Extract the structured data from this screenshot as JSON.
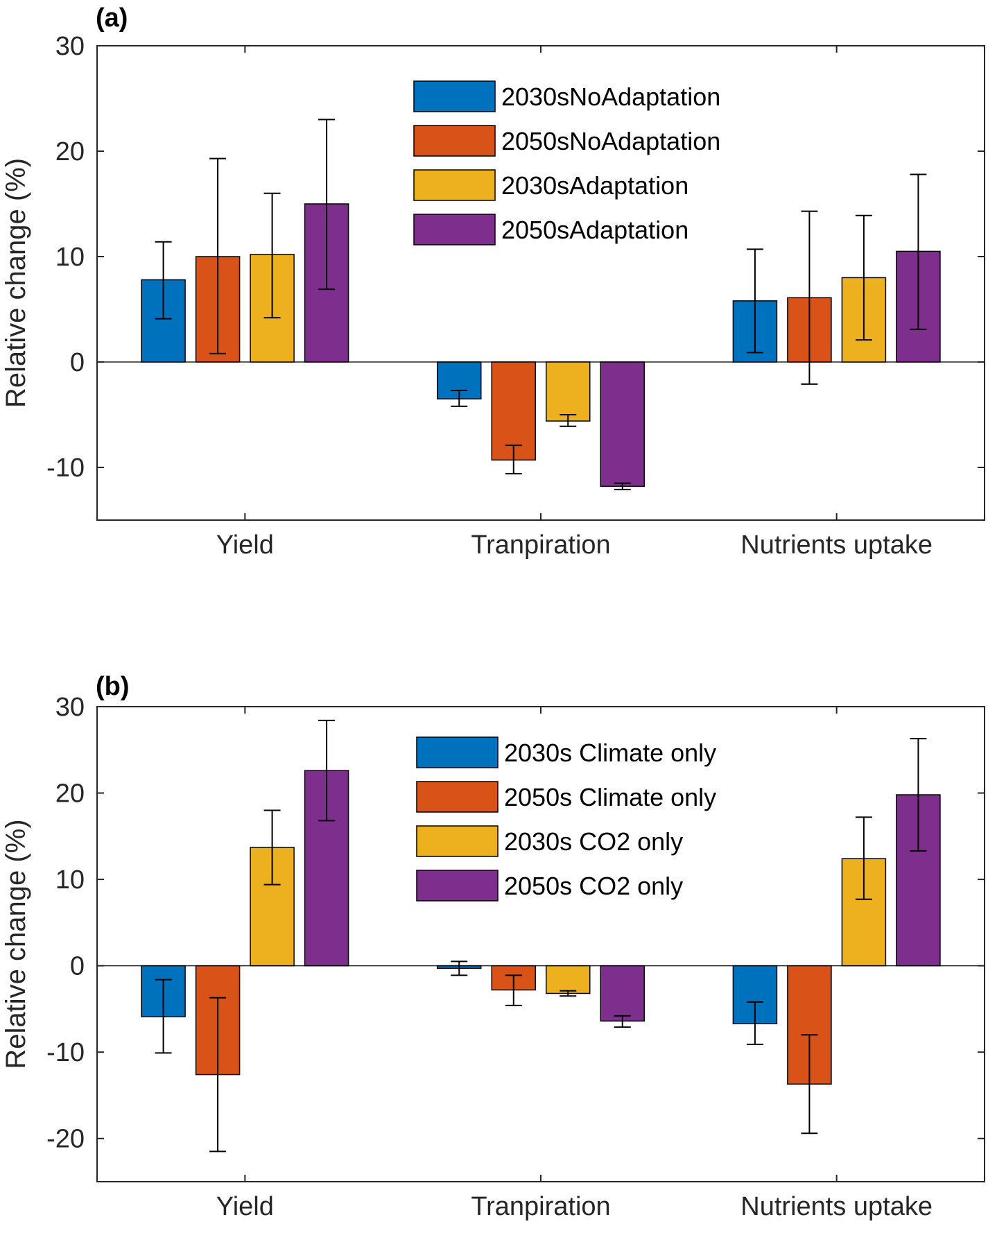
{
  "chart_data": [
    {
      "panel_label": "(a)",
      "type": "bar",
      "categories": [
        "Yield",
        "Tranpiration",
        "Nutrients uptake"
      ],
      "ylabel": "Relative change (%)",
      "ylim": [
        -15,
        30
      ],
      "yticks": [
        -10,
        0,
        10,
        20,
        30
      ],
      "legend_position": "top-center",
      "series": [
        {
          "name": "2030sNoAdaptation",
          "color": "#0072BD",
          "values": [
            7.8,
            -3.5,
            5.8
          ],
          "err_low": [
            4.1,
            -4.2,
            0.9
          ],
          "err_high": [
            11.4,
            -2.7,
            10.7
          ]
        },
        {
          "name": "2050sNoAdaptation",
          "color": "#D95319",
          "values": [
            10.0,
            -9.3,
            6.1
          ],
          "err_low": [
            0.8,
            -10.6,
            -2.1
          ],
          "err_high": [
            19.3,
            -7.9,
            14.3
          ]
        },
        {
          "name": "2030sAdaptation",
          "color": "#EDB120",
          "values": [
            10.2,
            -5.6,
            8.0
          ],
          "err_low": [
            4.2,
            -6.1,
            2.1
          ],
          "err_high": [
            16.0,
            -5.0,
            13.9
          ]
        },
        {
          "name": "2050sAdaptation",
          "color": "#7E2F8E",
          "values": [
            15.0,
            -11.8,
            10.5
          ],
          "err_low": [
            6.9,
            -12.1,
            3.1
          ],
          "err_high": [
            23.0,
            -11.5,
            17.8
          ]
        }
      ]
    },
    {
      "panel_label": "(b)",
      "type": "bar",
      "categories": [
        "Yield",
        "Tranpiration",
        "Nutrients uptake"
      ],
      "ylabel": "Relative change (%)",
      "ylim": [
        -25,
        30
      ],
      "yticks": [
        -20,
        -10,
        0,
        10,
        20,
        30
      ],
      "legend_position": "top-center",
      "series": [
        {
          "name": "2030s Climate only",
          "color": "#0072BD",
          "values": [
            -5.9,
            -0.3,
            -6.7
          ],
          "err_low": [
            -10.1,
            -1.1,
            -9.1
          ],
          "err_high": [
            -1.6,
            0.5,
            -4.2
          ]
        },
        {
          "name": "2050s Climate only",
          "color": "#D95319",
          "values": [
            -12.6,
            -2.8,
            -13.7
          ],
          "err_low": [
            -21.5,
            -4.6,
            -19.4
          ],
          "err_high": [
            -3.7,
            -1.1,
            -8.0
          ]
        },
        {
          "name": "2030s CO2 only",
          "color": "#EDB120",
          "values": [
            13.7,
            -3.2,
            12.4
          ],
          "err_low": [
            9.4,
            -3.5,
            7.7
          ],
          "err_high": [
            18.0,
            -2.9,
            17.2
          ]
        },
        {
          "name": "2050s CO2 only",
          "color": "#7E2F8E",
          "values": [
            22.6,
            -6.4,
            19.8
          ],
          "err_low": [
            16.8,
            -7.1,
            13.3
          ],
          "err_high": [
            28.4,
            -5.8,
            26.3
          ]
        }
      ]
    }
  ]
}
